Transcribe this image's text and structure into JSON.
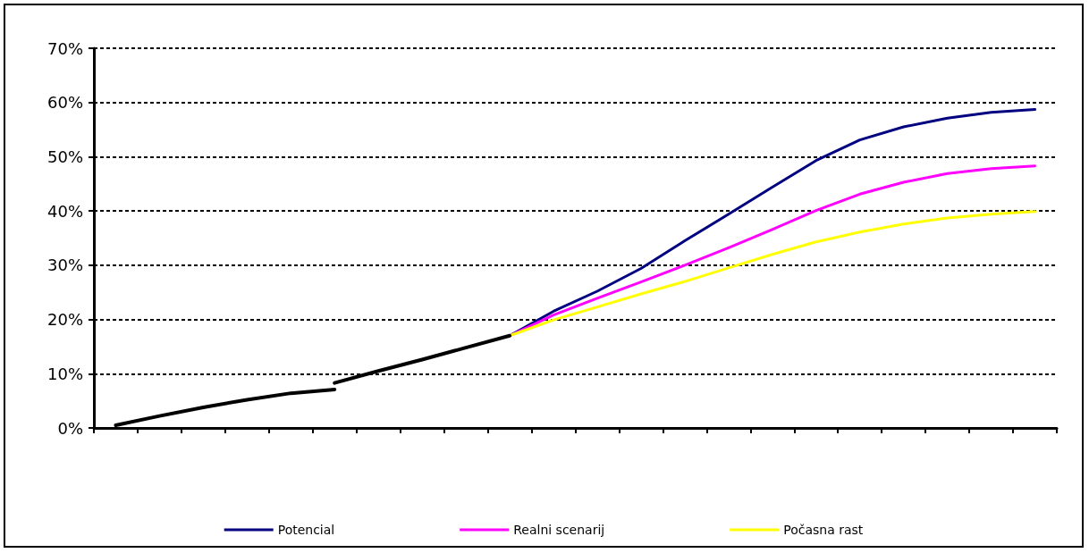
{
  "chart_data": {
    "type": "line",
    "categories": [
      null,
      null,
      null,
      null,
      null,
      null,
      null,
      null,
      null,
      null,
      null,
      null,
      null,
      null,
      null,
      null,
      null,
      null,
      null,
      null,
      null,
      null
    ],
    "series": [
      {
        "name": "Potencial",
        "color": "#000080",
        "values": [
          null,
          null,
          null,
          null,
          null,
          null,
          null,
          null,
          null,
          17.0,
          21.5,
          25.2,
          29.4,
          34.5,
          39.4,
          44.4,
          49.3,
          53.1,
          55.5,
          57.1,
          58.2,
          58.7
        ]
      },
      {
        "name": "Realni scenarij",
        "color": "#ff00ff",
        "values": [
          null,
          null,
          null,
          null,
          null,
          null,
          null,
          null,
          null,
          17.0,
          20.8,
          23.9,
          26.9,
          30.0,
          33.2,
          36.6,
          40.1,
          43.1,
          45.3,
          46.9,
          47.8,
          48.3
        ]
      },
      {
        "name": "Počasna rast",
        "color": "#ffff00",
        "values": [
          null,
          null,
          null,
          null,
          null,
          null,
          null,
          null,
          null,
          17.0,
          19.9,
          22.3,
          24.7,
          27.0,
          29.5,
          32.0,
          34.3,
          36.1,
          37.6,
          38.7,
          39.4,
          39.9
        ]
      },
      {
        "color": "#000000",
        "values": [
          0.5,
          2.2,
          3.8,
          5.2,
          6.4,
          7.1,
          null,
          null,
          null,
          null,
          null,
          null,
          null,
          null,
          null,
          null,
          null,
          null,
          null,
          null,
          null,
          null
        ]
      },
      {
        "color": "#000000",
        "values": [
          null,
          null,
          null,
          null,
          null,
          8.3,
          10.5,
          12.6,
          14.8,
          17.0,
          null,
          null,
          null,
          null,
          null,
          null,
          null,
          null,
          null,
          null,
          null,
          null
        ]
      }
    ],
    "ylim": [
      0,
      70
    ],
    "yticks": [
      {
        "value": 0,
        "label": "0%"
      },
      {
        "value": 10,
        "label": "10%"
      },
      {
        "value": 20,
        "label": "20%"
      },
      {
        "value": 30,
        "label": "30%"
      },
      {
        "value": 40,
        "label": "40%"
      },
      {
        "value": 50,
        "label": "50%"
      },
      {
        "value": 60,
        "label": "60%"
      },
      {
        "value": 70,
        "label": "70%"
      }
    ],
    "grid": "y",
    "legend": "bottom",
    "marker": "none"
  }
}
